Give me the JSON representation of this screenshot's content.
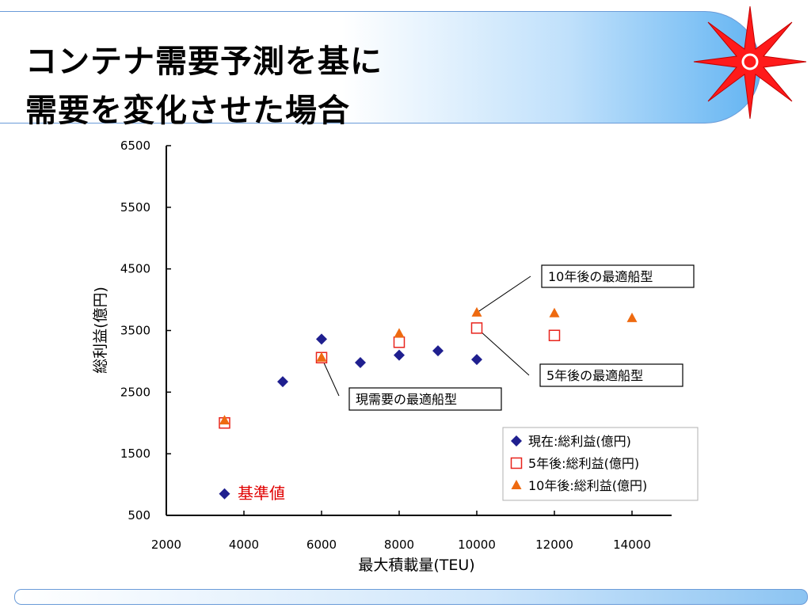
{
  "slide": {
    "title_line1": "コンテナ需要予測を基に",
    "title_line2": "需要を変化させた場合",
    "accent_color": "#ff1a1a"
  },
  "chart_data": {
    "type": "scatter",
    "xlabel": "最大積載量(TEU)",
    "ylabel": "総利益(億円)",
    "xlim": [
      2000,
      15000
    ],
    "ylim": [
      500,
      6500
    ],
    "x_ticks": [
      2000,
      4000,
      6000,
      8000,
      10000,
      12000,
      14000
    ],
    "y_ticks": [
      500,
      1500,
      2500,
      3500,
      4500,
      5500,
      6500
    ],
    "series": [
      {
        "name": "現在:総利益(億円)",
        "marker": "diamond",
        "color": "#1f1f8f",
        "points": [
          [
            3500,
            850
          ],
          [
            5000,
            2670
          ],
          [
            6000,
            3360
          ],
          [
            7000,
            2980
          ],
          [
            8000,
            3100
          ],
          [
            9000,
            3170
          ],
          [
            10000,
            3030
          ]
        ]
      },
      {
        "name": "5年後:総利益(億円)",
        "marker": "square-open",
        "color": "#e8231c",
        "points": [
          [
            3500,
            2000
          ],
          [
            6000,
            3060
          ],
          [
            8000,
            3310
          ],
          [
            10000,
            3540
          ],
          [
            12000,
            3420
          ]
        ]
      },
      {
        "name": "10年後:総利益(億円)",
        "marker": "triangle",
        "color": "#ee6a10",
        "points": [
          [
            3500,
            2040
          ],
          [
            6000,
            3060
          ],
          [
            8000,
            3450
          ],
          [
            10000,
            3790
          ],
          [
            12000,
            3780
          ],
          [
            14000,
            3700
          ]
        ]
      }
    ],
    "annotations": [
      {
        "text": "10年後の最適船型",
        "x": 10000,
        "y": 3790
      },
      {
        "text": "5年後の最適船型",
        "x": 10000,
        "y": 3540
      },
      {
        "text": "現需要の最適船型",
        "x": 6000,
        "y": 3060
      },
      {
        "text": "基準値",
        "x": 3500,
        "y": 850
      }
    ]
  }
}
